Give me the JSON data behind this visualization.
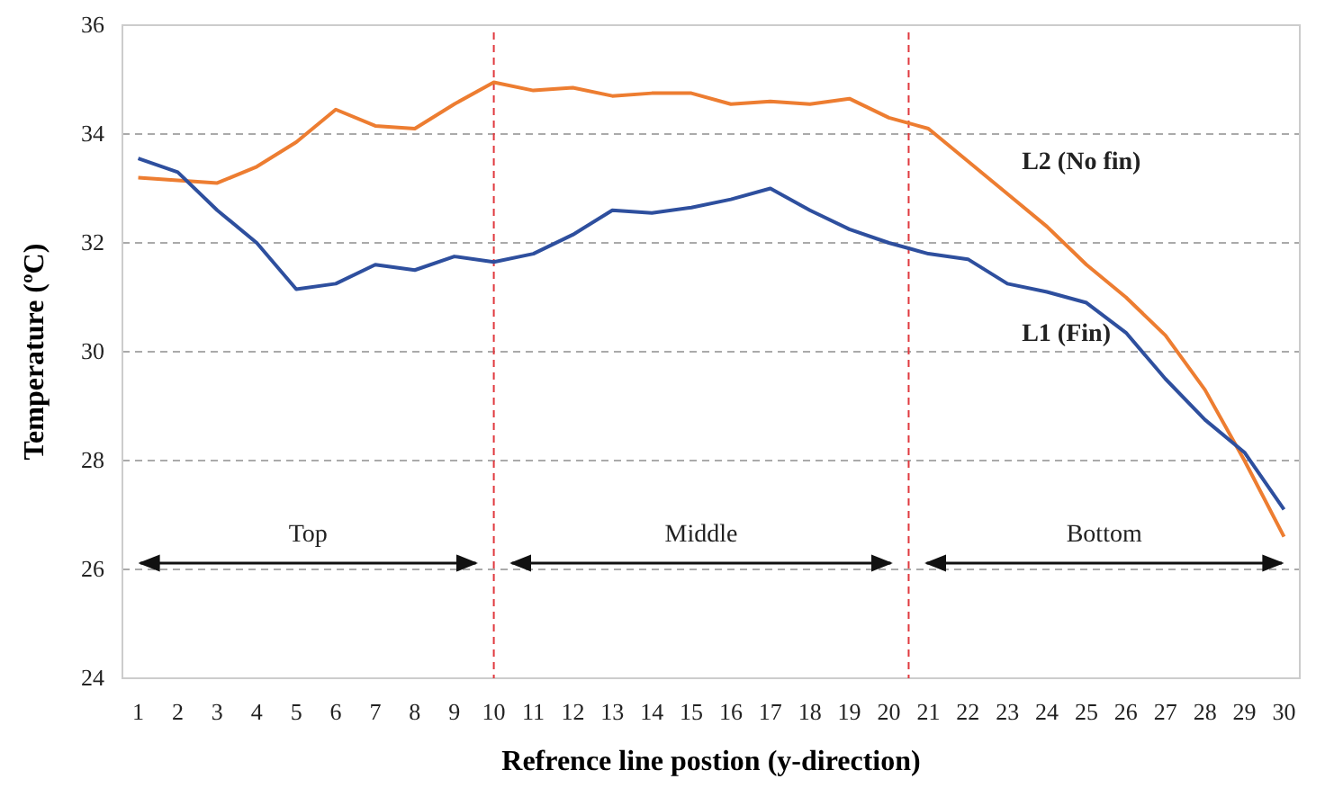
{
  "chart_data": {
    "type": "line",
    "xlabel": "Refrence line postion (y-direction)",
    "ylabel": "Temperature (ºC)",
    "x": [
      1,
      2,
      3,
      4,
      5,
      6,
      7,
      8,
      9,
      10,
      11,
      12,
      13,
      14,
      15,
      16,
      17,
      18,
      19,
      20,
      21,
      22,
      23,
      24,
      25,
      26,
      27,
      28,
      29,
      30
    ],
    "xlim": [
      0.6,
      30.4
    ],
    "xticks": [
      1,
      2,
      3,
      4,
      5,
      6,
      7,
      8,
      9,
      10,
      11,
      12,
      13,
      14,
      15,
      16,
      17,
      18,
      19,
      20,
      21,
      22,
      23,
      24,
      25,
      26,
      27,
      28,
      29,
      30
    ],
    "ylim": [
      24,
      36
    ],
    "yticks": [
      24,
      26,
      28,
      30,
      32,
      34,
      36
    ],
    "grid": "y",
    "legend": false,
    "marker": "none",
    "line_style": "solid",
    "series": [
      {
        "name": "L2 (No fin)",
        "color": "#ed7d31",
        "values": [
          33.2,
          33.15,
          33.1,
          33.4,
          33.85,
          34.45,
          34.15,
          34.1,
          34.55,
          34.95,
          34.8,
          34.85,
          34.7,
          34.75,
          34.75,
          34.55,
          34.6,
          34.55,
          34.65,
          34.3,
          34.1,
          33.5,
          32.9,
          32.3,
          31.6,
          31.0,
          30.3,
          29.3,
          28.0,
          26.6
        ]
      },
      {
        "name": "L1 (Fin)",
        "color": "#2e4f9e",
        "values": [
          33.55,
          33.3,
          32.6,
          32.0,
          31.15,
          31.25,
          31.6,
          31.5,
          31.75,
          31.65,
          31.8,
          32.15,
          32.6,
          32.55,
          32.65,
          32.8,
          33.0,
          32.6,
          32.25,
          32.0,
          31.8,
          31.7,
          31.25,
          31.1,
          30.9,
          30.35,
          29.5,
          28.75,
          28.15,
          27.1
        ]
      }
    ],
    "ref_lines": [
      {
        "axis": "x",
        "value": 10,
        "color": "#e0393e",
        "line_style": "dashed"
      },
      {
        "axis": "x",
        "value": 20.5,
        "color": "#e0393e",
        "line_style": "dashed"
      }
    ],
    "annotations": [
      "Top",
      "Middle",
      "Bottom"
    ]
  }
}
